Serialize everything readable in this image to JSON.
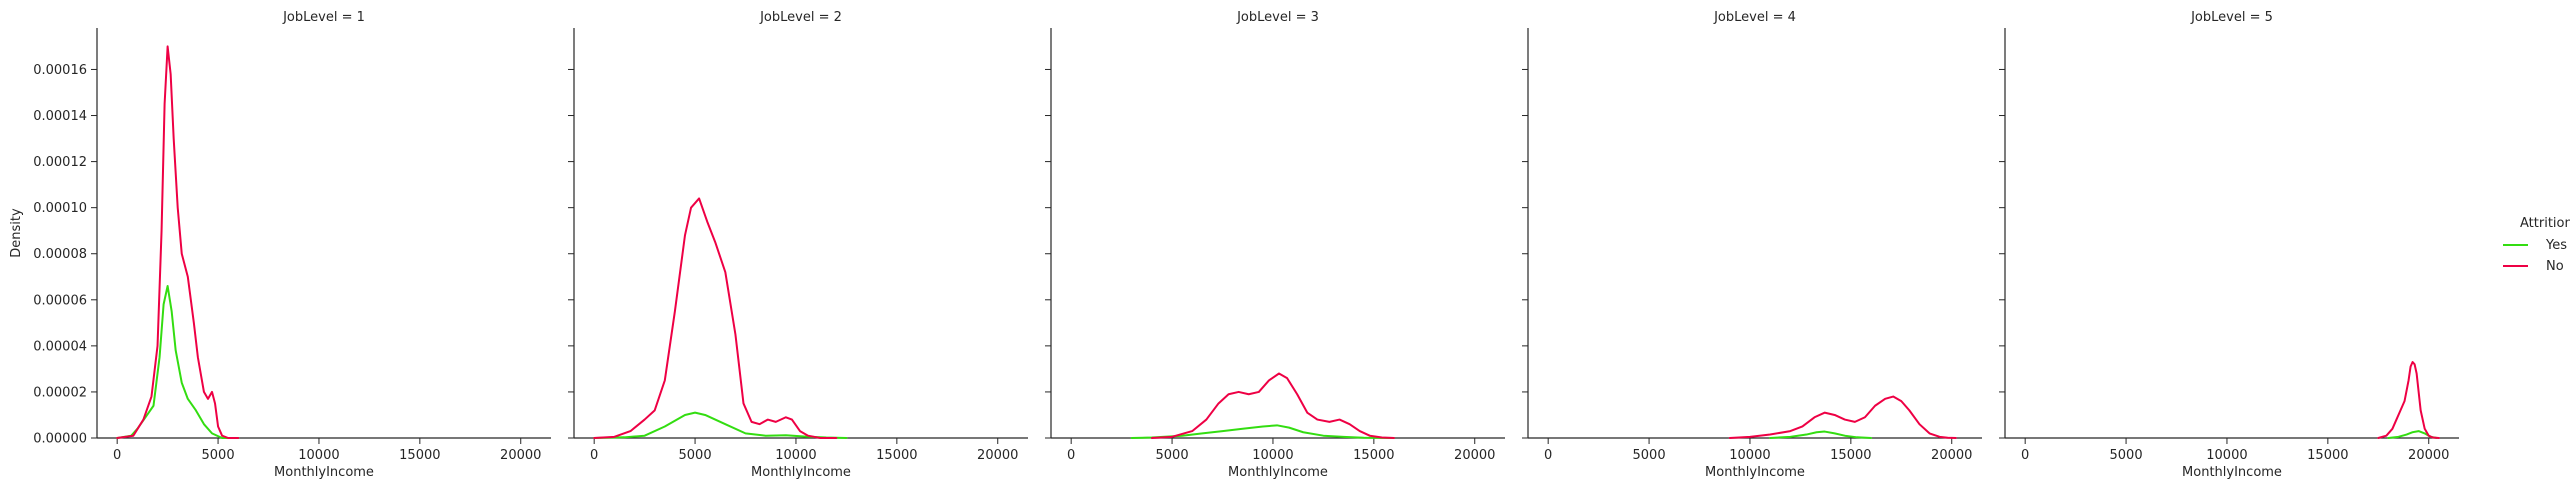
{
  "chart_data": {
    "type": "line",
    "subtype": "kde",
    "ylabel": "Density",
    "xlabel": "MonthlyIncome",
    "xlim": [
      -1000,
      21500
    ],
    "ylim": [
      0,
      0.000178
    ],
    "x_ticks": [
      "0",
      "5000",
      "10000",
      "15000",
      "20000"
    ],
    "y_ticks": [
      "0.00000",
      "0.00002",
      "0.00004",
      "0.00006",
      "0.00008",
      "0.00010",
      "0.00012",
      "0.00014",
      "0.00016"
    ],
    "grid": false,
    "legend": {
      "title": "Attrition",
      "position": "right",
      "entries": [
        {
          "label": "Yes",
          "color": "#33dd11"
        },
        {
          "label": "No",
          "color": "#ee0044"
        }
      ]
    },
    "panels": [
      {
        "title": "JobLevel = 1",
        "series": [
          {
            "name": "No",
            "color": "#ee0044",
            "x": [
              0,
              800,
              1300,
              1700,
              2000,
              2200,
              2350,
              2500,
              2650,
              2800,
              3000,
              3200,
              3500,
              3800,
              4000,
              4300,
              4500,
              4700,
              4850,
              5000,
              5200,
              5500,
              6000
            ],
            "y": [
              0,
              1e-06,
              8e-06,
              1.8e-05,
              4e-05,
              9e-05,
              0.000145,
              0.00017,
              0.000158,
              0.00013,
              0.0001,
              8e-05,
              7e-05,
              5e-05,
              3.5e-05,
              2e-05,
              1.7e-05,
              2e-05,
              1.5e-05,
              5e-06,
              1e-06,
              0,
              0
            ]
          },
          {
            "name": "Yes",
            "color": "#33dd11",
            "x": [
              0,
              700,
              1000,
              1400,
              1800,
              2100,
              2300,
              2500,
              2700,
              2900,
              3200,
              3500,
              3900,
              4300,
              4700,
              5200,
              6000
            ],
            "y": [
              0,
              1e-06,
              4e-06,
              9e-06,
              1.4e-05,
              3.5e-05,
              5.8e-05,
              6.6e-05,
              5.5e-05,
              3.8e-05,
              2.4e-05,
              1.7e-05,
              1.2e-05,
              6e-06,
              2e-06,
              0,
              0
            ]
          }
        ]
      },
      {
        "title": "JobLevel = 2",
        "series": [
          {
            "name": "No",
            "color": "#ee0044",
            "x": [
              0,
              1000,
              1800,
              2500,
              3000,
              3500,
              4000,
              4500,
              4800,
              5200,
              5600,
              6000,
              6500,
              7000,
              7400,
              7800,
              8200,
              8600,
              9000,
              9500,
              9800,
              10200,
              10600,
              11200,
              12000
            ],
            "y": [
              0,
              5e-07,
              3e-06,
              8e-06,
              1.2e-05,
              2.5e-05,
              5.5e-05,
              8.8e-05,
              0.0001,
              0.000104,
              9.4e-05,
              8.5e-05,
              7.2e-05,
              4.5e-05,
              1.5e-05,
              7e-06,
              6e-06,
              8e-06,
              7e-06,
              9e-06,
              8e-06,
              3e-06,
              1e-06,
              0,
              0
            ]
          },
          {
            "name": "Yes",
            "color": "#33dd11",
            "x": [
              0,
              1500,
              2500,
              3500,
              4500,
              5000,
              5500,
              6500,
              7500,
              8500,
              9500,
              10500,
              11500,
              12500
            ],
            "y": [
              0,
              3e-07,
              1e-06,
              5e-06,
              1e-05,
              1.1e-05,
              1e-05,
              6e-06,
              2e-06,
              1e-06,
              1.2e-06,
              6e-07,
              2e-07,
              0
            ]
          }
        ]
      },
      {
        "title": "JobLevel = 3",
        "series": [
          {
            "name": "No",
            "color": "#ee0044",
            "x": [
              4000,
              5000,
              6000,
              6700,
              7300,
              7800,
              8300,
              8800,
              9300,
              9800,
              10300,
              10700,
              11200,
              11700,
              12200,
              12800,
              13300,
              13800,
              14300,
              14800,
              15400,
              16000
            ],
            "y": [
              0,
              5e-07,
              3e-06,
              8e-06,
              1.5e-05,
              1.9e-05,
              2e-05,
              1.9e-05,
              2e-05,
              2.5e-05,
              2.8e-05,
              2.6e-05,
              1.9e-05,
              1.1e-05,
              8e-06,
              7e-06,
              8e-06,
              6e-06,
              3e-06,
              1e-06,
              2e-07,
              0
            ]
          },
          {
            "name": "Yes",
            "color": "#33dd11",
            "x": [
              3000,
              4000,
              5500,
              6500,
              7500,
              8500,
              9500,
              10200,
              10800,
              11500,
              12500,
              13500,
              14500,
              16000
            ],
            "y": [
              0,
              2e-07,
              1e-06,
              2e-06,
              3e-06,
              4e-06,
              5e-06,
              5.5e-06,
              4.5e-06,
              2.5e-06,
              1e-06,
              5e-07,
              1e-07,
              0
            ]
          }
        ]
      },
      {
        "title": "JobLevel = 4",
        "series": [
          {
            "name": "No",
            "color": "#ee0044",
            "x": [
              9000,
              10000,
              11000,
              12000,
              12600,
              13200,
              13700,
              14200,
              14700,
              15200,
              15700,
              16200,
              16700,
              17100,
              17500,
              17900,
              18400,
              18900,
              19400,
              19800,
              20200
            ],
            "y": [
              0,
              5e-07,
              1.5e-06,
              3e-06,
              5e-06,
              9e-06,
              1.1e-05,
              1e-05,
              8e-06,
              7e-06,
              9e-06,
              1.4e-05,
              1.7e-05,
              1.8e-05,
              1.6e-05,
              1.2e-05,
              6e-06,
              2e-06,
              5e-07,
              1e-07,
              0
            ]
          },
          {
            "name": "Yes",
            "color": "#33dd11",
            "x": [
              11000,
              12000,
              12800,
              13300,
              13700,
              14200,
              14700,
              15300,
              16000
            ],
            "y": [
              0,
              5e-07,
              1.5e-06,
              2.5e-06,
              2.8e-06,
              2e-06,
              1e-06,
              3e-07,
              0
            ]
          }
        ]
      },
      {
        "title": "JobLevel = 5",
        "series": [
          {
            "name": "No",
            "color": "#ee0044",
            "x": [
              17500,
              17900,
              18200,
              18400,
              18600,
              18800,
              19000,
              19100,
              19200,
              19300,
              19400,
              19500,
              19600,
              19800,
              20000,
              20200,
              20500
            ],
            "y": [
              0,
              1e-06,
              4e-06,
              8e-06,
              1.2e-05,
              1.6e-05,
              2.5e-05,
              3.1e-05,
              3.3e-05,
              3.2e-05,
              2.8e-05,
              2e-05,
              1.2e-05,
              4e-06,
              1e-06,
              2e-07,
              0
            ]
          },
          {
            "name": "Yes",
            "color": "#33dd11",
            "x": [
              18000,
              18500,
              18900,
              19200,
              19500,
              19800,
              20100,
              20400
            ],
            "y": [
              0,
              5e-07,
              1.5e-06,
              2.5e-06,
              3e-06,
              2e-06,
              5e-07,
              0
            ]
          }
        ]
      }
    ]
  }
}
